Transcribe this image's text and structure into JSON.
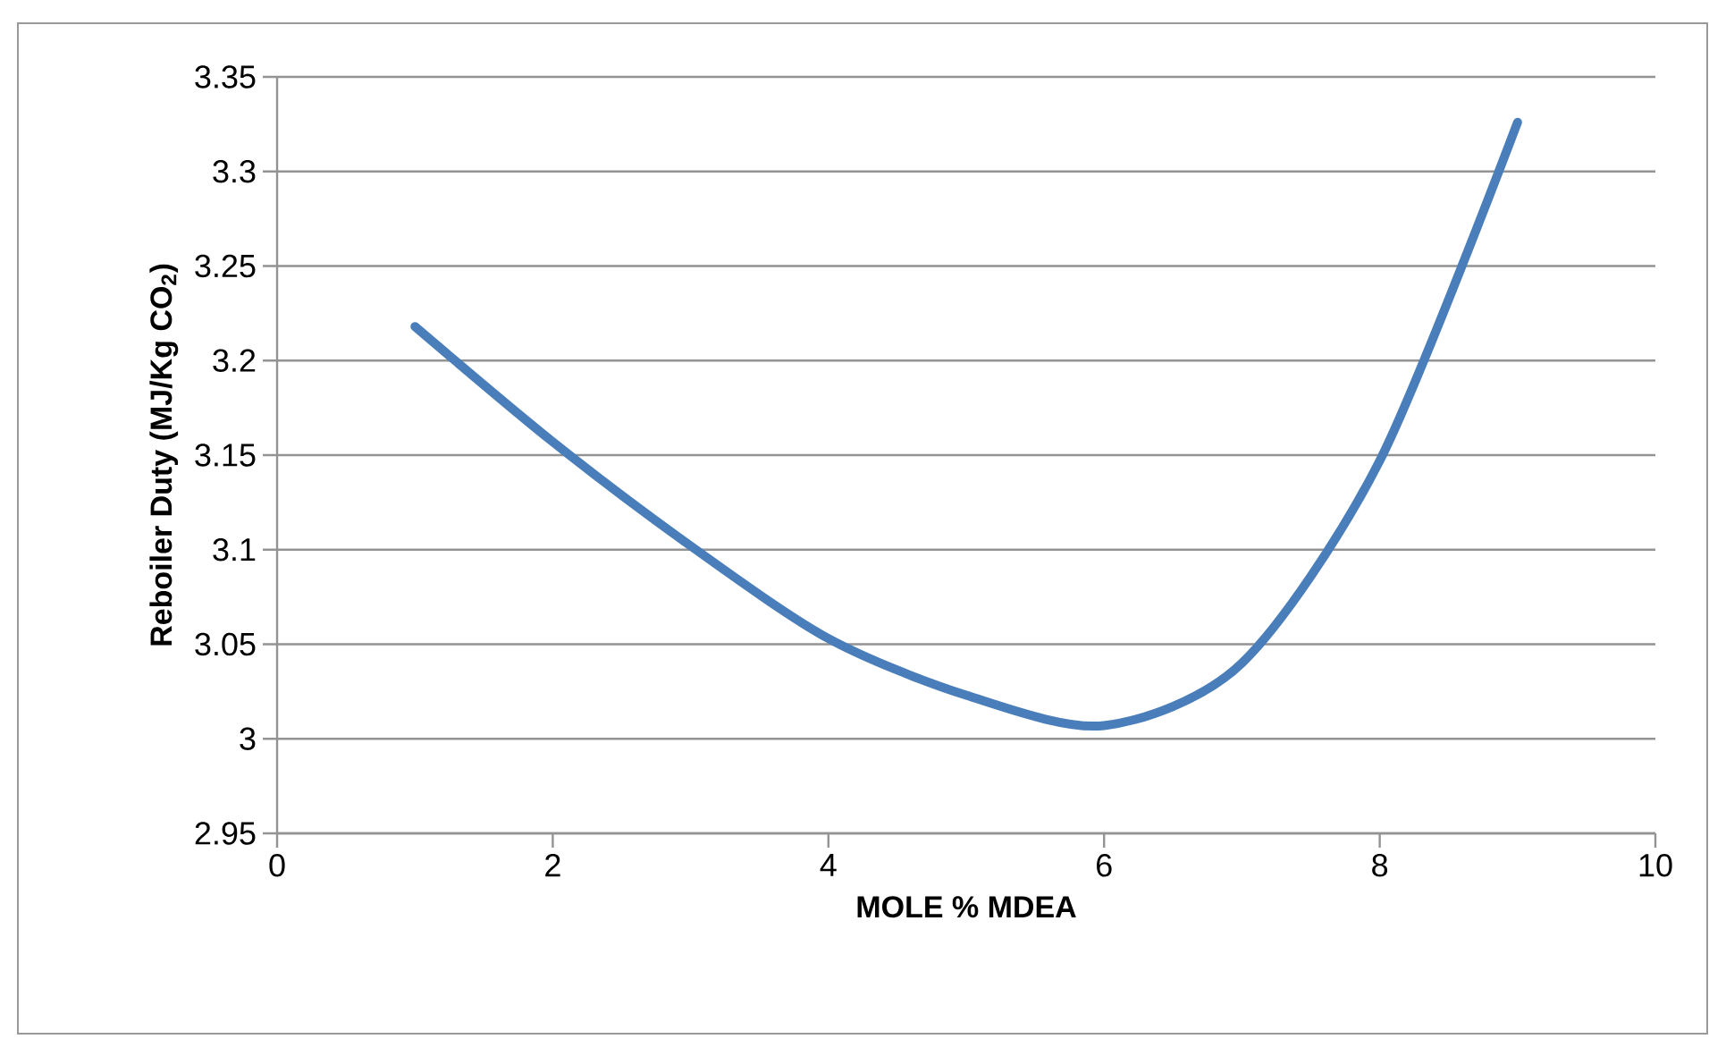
{
  "chart_data": {
    "type": "line",
    "xlabel": "MOLE % MDEA",
    "ylabel": "Reboiler Duty (MJ/Kg CO$_{2}$)",
    "x": [
      1,
      2,
      3,
      4,
      5,
      6,
      7,
      8,
      9
    ],
    "series": [
      {
        "color": "#4a7ebb",
        "values": [
          3.218,
          3.157,
          3.102,
          3.053,
          3.023,
          3.007,
          3.04,
          3.147,
          3.326
        ]
      }
    ],
    "xlim": [
      0,
      10
    ],
    "xticks": [
      0,
      2,
      4,
      6,
      8,
      10
    ],
    "ylim": [
      2.95,
      3.35
    ],
    "yticks": [
      2.95,
      3,
      3.05,
      3.1,
      3.15,
      3.2,
      3.25,
      3.3,
      3.35
    ],
    "grid": "y",
    "legend": false,
    "marker": "none",
    "line_style": "solid"
  }
}
